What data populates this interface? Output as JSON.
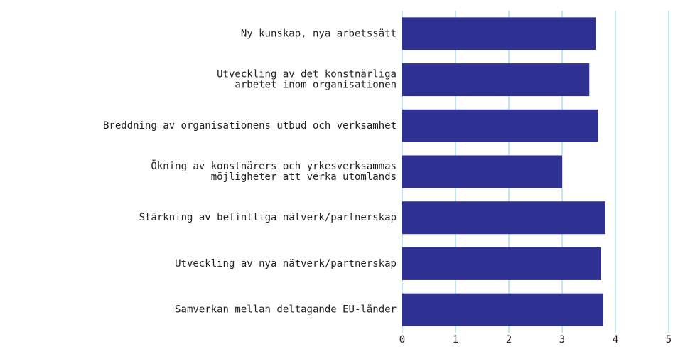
{
  "chart_data": {
    "type": "barh",
    "categories": [
      [
        "Ny kunskap, nya arbetssätt"
      ],
      [
        "Utveckling av det konstnärliga",
        "arbetet inom organisationen"
      ],
      [
        "Breddning av organisationens utbud och verksamhet"
      ],
      [
        "Ökning av konstnärers och yrkesverksammas",
        "möjligheter att verka utomlands"
      ],
      [
        "Stärkning av befintliga nätverk/partnerskap"
      ],
      [
        "Utveckling av nya nätverk/partnerskap"
      ],
      [
        "Samverkan mellan deltagande EU-länder"
      ]
    ],
    "values": [
      3.63,
      3.51,
      3.68,
      3.0,
      3.81,
      3.73,
      3.77
    ],
    "color": "#2e3192",
    "xlim": [
      0,
      5
    ],
    "xticks": [
      0,
      1,
      2,
      3,
      4,
      5
    ],
    "grid": true
  }
}
